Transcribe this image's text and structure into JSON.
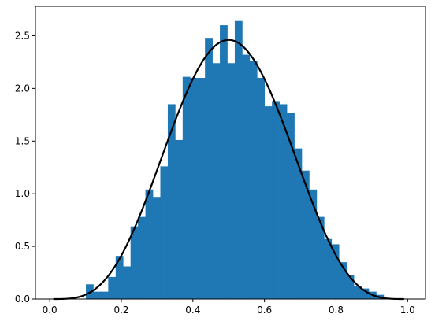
{
  "chart_data": {
    "type": "bar",
    "title": "",
    "xlabel": "",
    "ylabel": "",
    "xlim": [
      -0.04,
      1.05
    ],
    "ylim": [
      0,
      2.78
    ],
    "x_ticks": [
      0.0,
      0.2,
      0.4,
      0.6,
      0.8,
      1.0
    ],
    "x_tick_labels": [
      "0.0",
      "0.2",
      "0.4",
      "0.6",
      "0.8",
      "1.0"
    ],
    "y_ticks": [
      0.0,
      0.5,
      1.0,
      1.5,
      2.0,
      2.5
    ],
    "y_tick_labels": [
      "0.0",
      "0.5",
      "1.0",
      "1.5",
      "2.0",
      "2.5"
    ],
    "grid": false,
    "legend": "none",
    "histogram": {
      "bin_edges": [
        0.101,
        0.1218,
        0.1426,
        0.1634,
        0.1842,
        0.205,
        0.2258,
        0.2466,
        0.2674,
        0.2882,
        0.309,
        0.3298,
        0.3506,
        0.3714,
        0.3922,
        0.413,
        0.4338,
        0.4546,
        0.4754,
        0.4962,
        0.517,
        0.5378,
        0.5586,
        0.5794,
        0.6002,
        0.621,
        0.6418,
        0.6626,
        0.6834,
        0.7042,
        0.725,
        0.7458,
        0.7666,
        0.7874,
        0.8082,
        0.829,
        0.8498,
        0.8706,
        0.8914,
        0.9122,
        0.933
      ],
      "density": [
        0.14,
        0.07,
        0.07,
        0.21,
        0.41,
        0.31,
        0.69,
        0.78,
        1.04,
        0.97,
        1.26,
        1.85,
        1.51,
        2.11,
        2.1,
        2.1,
        2.48,
        2.24,
        2.6,
        2.24,
        2.64,
        2.32,
        2.26,
        2.1,
        1.83,
        1.88,
        1.85,
        1.77,
        1.43,
        1.22,
        1.04,
        0.78,
        0.57,
        0.52,
        0.35,
        0.23,
        0.12,
        0.1,
        0.07,
        0.04
      ],
      "color": "#1f77b4"
    },
    "curve": {
      "distribution": "beta",
      "alpha": 5,
      "beta": 5,
      "x_range": [
        0.01,
        0.99
      ],
      "color": "#000000"
    }
  }
}
